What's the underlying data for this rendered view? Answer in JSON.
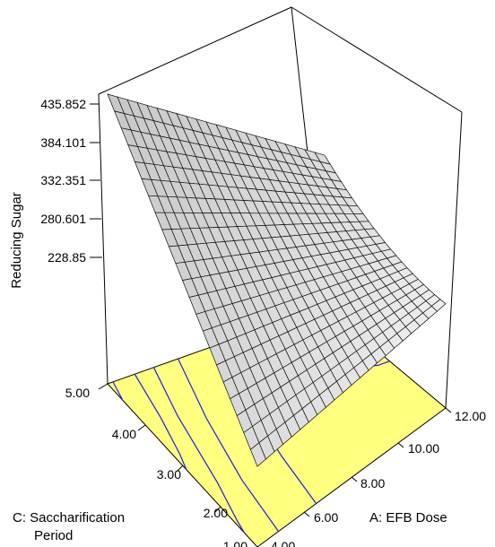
{
  "chart_data": {
    "type": "surface",
    "zlabel": "Reducing Sugar",
    "xlabel": "A: EFB Dose",
    "ylabel_line1": "C: Saccharification",
    "ylabel_line2": "Period",
    "z_ticks": [
      "435.852",
      "384.101",
      "332.351",
      "280.601",
      "228.85"
    ],
    "x_ticks": [
      "4.00",
      "6.00",
      "8.00",
      "10.00",
      "12.00"
    ],
    "y_ticks": [
      "1.00",
      "2.00",
      "3.00",
      "4.00",
      "5.00"
    ],
    "z_tick_values": [
      435.852,
      384.101,
      332.351,
      280.601,
      228.85
    ],
    "x_tick_values": [
      4,
      6,
      8,
      10,
      12
    ],
    "y_tick_values": [
      1,
      2,
      3,
      4,
      5
    ],
    "surface_corners": {
      "A4_C5": 435.852,
      "A12_C5": 290,
      "A12_C1": 240,
      "A4_C1": 215
    },
    "floor_color": "#ffff80",
    "surface_color": "#d8d8d8",
    "contour_color": "#1e1ee6"
  }
}
